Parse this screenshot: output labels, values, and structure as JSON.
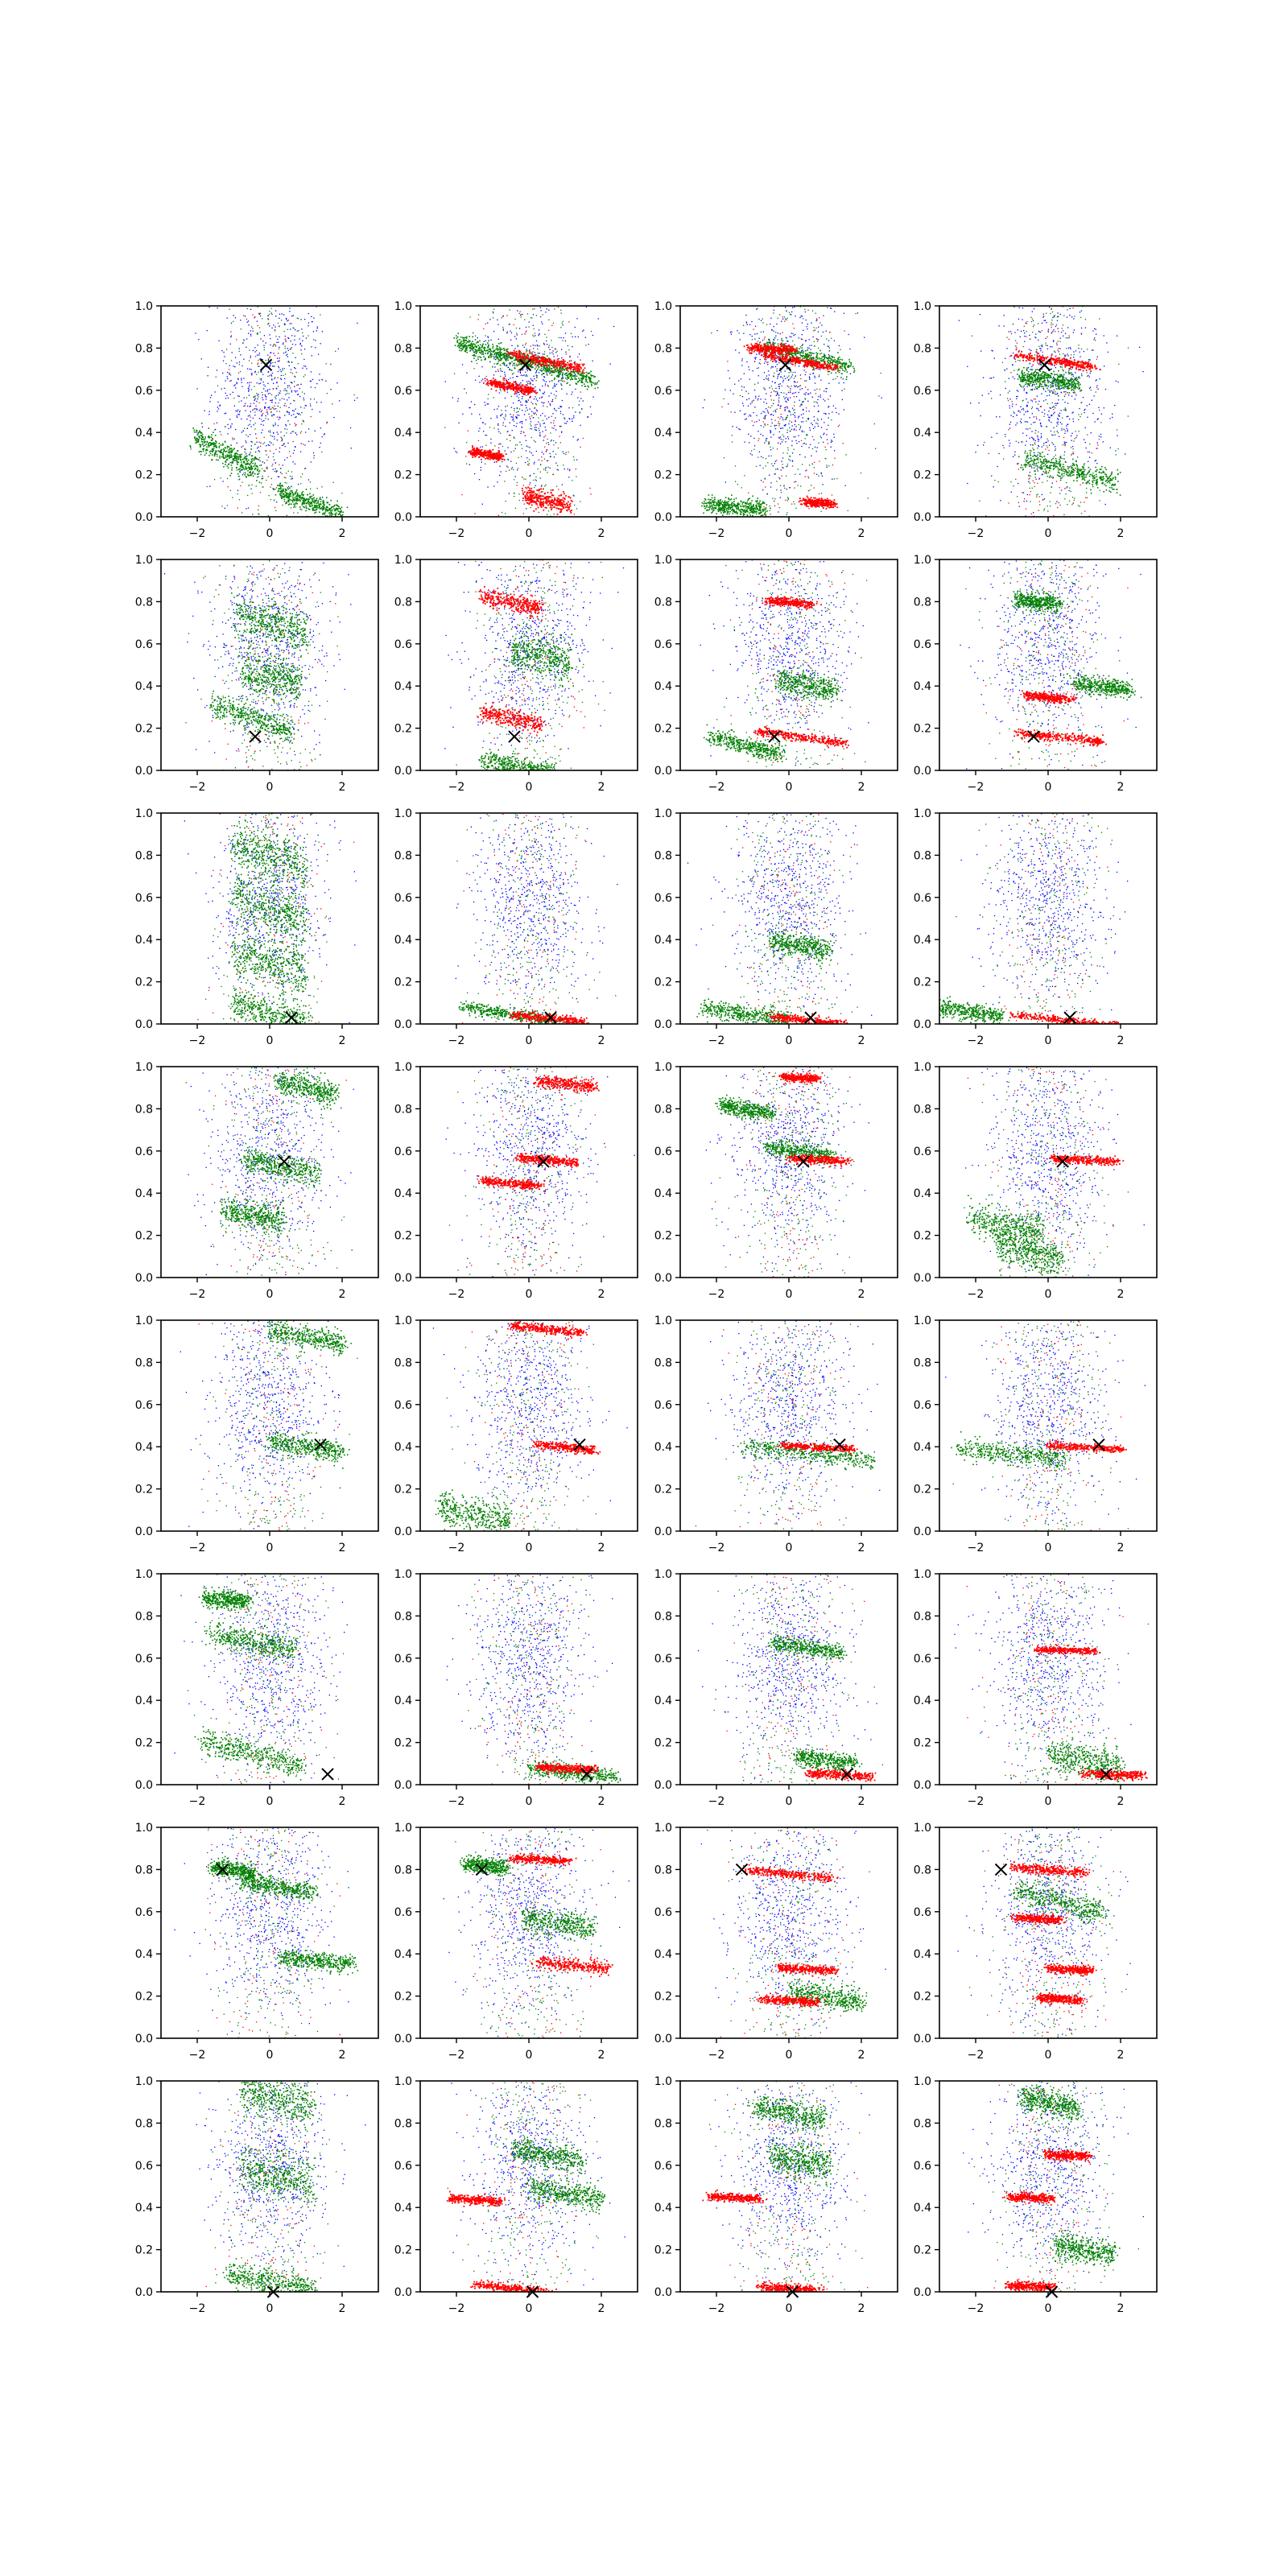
{
  "figure": {
    "title": "",
    "background": "#ffffff"
  },
  "colors": {
    "blue": "#0000ff",
    "green": "#008000",
    "red": "#ff0000",
    "marker": "#000000"
  },
  "axes_common": {
    "x_ticks": [
      -2,
      0,
      2
    ],
    "y_ticks": [
      0.0,
      0.2,
      0.4,
      0.6,
      0.8,
      1.0
    ],
    "x_tick_labels": [
      "−2",
      "0",
      "2"
    ],
    "y_tick_labels": [
      "0.0",
      "0.2",
      "0.4",
      "0.6",
      "0.8",
      "1.0"
    ],
    "xlim": [
      -3,
      3
    ],
    "ylim": [
      0,
      1
    ],
    "grid": false
  },
  "chart_data": {
    "type": "scatter",
    "layout": "8 rows x 4 columns grid of scatter subplots",
    "series": [
      {
        "name": "blue",
        "color": "#0000ff",
        "description": "broad cloud centered near x=0, y≈0.6"
      },
      {
        "name": "green",
        "color": "#008000",
        "description": "tilted bands"
      },
      {
        "name": "red",
        "color": "#ff0000",
        "description": "thin tilted bands"
      },
      {
        "name": "marker",
        "color": "#000000",
        "description": "single x marker"
      }
    ],
    "rows": [
      {
        "marker": [
          -0.1,
          0.72
        ],
        "bands": [
          [
            [
              -1.2,
              0.3,
              0.9,
              0.55,
              0.03,
              "g"
            ],
            [
              1.1,
              0.07,
              0.9,
              0.35,
              0.02,
              "g"
            ]
          ],
          [
            [
              -1.0,
              0.78,
              1.0,
              0.3,
              0.02,
              "g"
            ],
            [
              0.8,
              0.7,
              1.0,
              0.35,
              0.02,
              "g"
            ],
            [
              0.5,
              0.74,
              1.0,
              0.2,
              0.012,
              "r"
            ],
            [
              -0.5,
              0.62,
              0.6,
              0.2,
              0.01,
              "r"
            ],
            [
              -1.2,
              0.3,
              0.4,
              0.2,
              0.01,
              "r"
            ],
            [
              0.5,
              0.08,
              0.6,
              0.25,
              0.02,
              "r"
            ]
          ],
          [
            [
              0.5,
              0.76,
              1.2,
              0.25,
              0.02,
              "g"
            ],
            [
              0.3,
              0.74,
              1.0,
              0.2,
              0.01,
              "r"
            ],
            [
              -0.5,
              0.8,
              0.6,
              0.05,
              0.01,
              "r"
            ],
            [
              -1.5,
              0.05,
              0.8,
              0.1,
              0.02,
              "g"
            ],
            [
              0.8,
              0.07,
              0.4,
              0.1,
              0.01,
              "r"
            ]
          ],
          [
            [
              0.6,
              0.22,
              1.3,
              0.25,
              0.025,
              "g"
            ],
            [
              0.2,
              0.74,
              1.1,
              0.15,
              0.01,
              "r"
            ],
            [
              0.0,
              0.65,
              0.8,
              0.15,
              0.02,
              "g"
            ]
          ]
        ]
      },
      {
        "marker": [
          -0.4,
          0.16
        ],
        "bands": [
          [
            [
              -0.5,
              0.25,
              1.1,
              0.35,
              0.03,
              "g"
            ],
            [
              0.0,
              0.7,
              1.0,
              0.25,
              0.05,
              "g"
            ],
            [
              0.0,
              0.45,
              0.8,
              0.2,
              0.05,
              "g"
            ]
          ],
          [
            [
              -0.5,
              0.8,
              0.8,
              0.2,
              0.02,
              "r"
            ],
            [
              -0.5,
              0.25,
              0.8,
              0.2,
              0.02,
              "r"
            ],
            [
              -0.3,
              0.02,
              1.0,
              0.2,
              0.02,
              "g"
            ],
            [
              0.3,
              0.55,
              0.8,
              0.2,
              0.05,
              "g"
            ]
          ],
          [
            [
              -1.2,
              0.12,
              1.0,
              0.25,
              0.02,
              "g"
            ],
            [
              0.3,
              0.16,
              1.2,
              0.15,
              0.01,
              "r"
            ],
            [
              0.5,
              0.4,
              0.8,
              0.2,
              0.03,
              "g"
            ],
            [
              0.0,
              0.8,
              0.6,
              0.1,
              0.01,
              "r"
            ]
          ],
          [
            [
              0.3,
              0.16,
              1.2,
              0.1,
              0.01,
              "r"
            ],
            [
              1.5,
              0.4,
              0.8,
              0.15,
              0.02,
              "g"
            ],
            [
              0.0,
              0.35,
              0.6,
              0.1,
              0.01,
              "r"
            ],
            [
              -0.3,
              0.8,
              0.6,
              0.1,
              0.02,
              "g"
            ]
          ]
        ]
      },
      {
        "marker": [
          0.6,
          0.03
        ],
        "bands": [
          [
            [
              0.0,
              0.55,
              1.0,
              0.3,
              0.06,
              "g"
            ],
            [
              0.0,
              0.3,
              1.0,
              0.3,
              0.06,
              "g"
            ],
            [
              0.0,
              0.05,
              1.0,
              0.3,
              0.04,
              "g"
            ],
            [
              0.0,
              0.8,
              1.0,
              0.3,
              0.06,
              "g"
            ]
          ],
          [
            [
              -0.5,
              0.05,
              1.4,
              0.15,
              0.015,
              "g"
            ],
            [
              0.5,
              0.03,
              1.0,
              0.1,
              0.01,
              "r"
            ]
          ],
          [
            [
              -1.2,
              0.05,
              1.2,
              0.15,
              0.02,
              "g"
            ],
            [
              0.5,
              0.02,
              1.0,
              0.1,
              0.01,
              "r"
            ],
            [
              0.3,
              0.37,
              0.8,
              0.15,
              0.03,
              "g"
            ]
          ],
          [
            [
              -2.2,
              0.06,
              0.9,
              0.15,
              0.02,
              "g"
            ],
            [
              0.5,
              0.02,
              1.5,
              0.1,
              0.008,
              "r"
            ]
          ]
        ]
      },
      {
        "marker": [
          0.4,
          0.55
        ],
        "bands": [
          [
            [
              1.0,
              0.9,
              0.8,
              0.25,
              0.03,
              "g"
            ],
            [
              0.3,
              0.53,
              1.0,
              0.2,
              0.03,
              "g"
            ],
            [
              -0.5,
              0.3,
              0.8,
              0.2,
              0.03,
              "g"
            ]
          ],
          [
            [
              1.0,
              0.92,
              0.8,
              0.1,
              0.015,
              "r"
            ],
            [
              0.5,
              0.56,
              0.8,
              0.1,
              0.01,
              "r"
            ],
            [
              -0.5,
              0.45,
              0.8,
              0.1,
              0.01,
              "r"
            ]
          ],
          [
            [
              -1.2,
              0.8,
              0.7,
              0.15,
              0.02,
              "g"
            ],
            [
              0.3,
              0.6,
              0.9,
              0.15,
              0.02,
              "g"
            ],
            [
              0.8,
              0.56,
              0.8,
              0.05,
              0.01,
              "r"
            ],
            [
              0.3,
              0.95,
              0.5,
              0.05,
              0.01,
              "r"
            ]
          ],
          [
            [
              1.0,
              0.56,
              0.9,
              0.05,
              0.01,
              "r"
            ],
            [
              -1.2,
              0.25,
              1.0,
              0.2,
              0.04,
              "g"
            ],
            [
              -0.5,
              0.12,
              0.9,
              0.2,
              0.04,
              "g"
            ]
          ]
        ]
      },
      {
        "marker": [
          1.4,
          0.41
        ],
        "bands": [
          [
            [
              1.0,
              0.4,
              1.0,
              0.15,
              0.025,
              "g"
            ],
            [
              1.0,
              0.92,
              1.0,
              0.15,
              0.025,
              "g"
            ]
          ],
          [
            [
              1.0,
              0.4,
              0.8,
              0.1,
              0.01,
              "r"
            ],
            [
              0.5,
              0.96,
              1.0,
              0.1,
              0.01,
              "r"
            ],
            [
              -1.5,
              0.08,
              1.0,
              0.2,
              0.04,
              "g"
            ]
          ],
          [
            [
              0.5,
              0.37,
              1.8,
              0.12,
              0.02,
              "g"
            ],
            [
              0.8,
              0.4,
              1.0,
              0.05,
              0.008,
              "r"
            ]
          ],
          [
            [
              -1.0,
              0.37,
              1.5,
              0.1,
              0.025,
              "g"
            ],
            [
              1.0,
              0.4,
              1.0,
              0.05,
              0.008,
              "r"
            ]
          ]
        ]
      },
      {
        "marker": [
          1.6,
          0.05
        ],
        "bands": [
          [
            [
              -0.5,
              0.15,
              1.4,
              0.25,
              0.03,
              "g"
            ],
            [
              -0.5,
              0.68,
              1.2,
              0.2,
              0.03,
              "g"
            ],
            [
              -1.2,
              0.88,
              0.6,
              0.1,
              0.02,
              "g"
            ]
          ],
          [
            [
              1.2,
              0.06,
              1.2,
              0.1,
              0.02,
              "g"
            ],
            [
              1.0,
              0.08,
              0.8,
              0.05,
              0.01,
              "r"
            ]
          ],
          [
            [
              0.5,
              0.65,
              1.0,
              0.15,
              0.02,
              "g"
            ],
            [
              1.4,
              0.05,
              0.9,
              0.05,
              0.01,
              "r"
            ],
            [
              1.0,
              0.12,
              0.8,
              0.1,
              0.02,
              "g"
            ]
          ],
          [
            [
              1.8,
              0.05,
              0.8,
              0.03,
              0.01,
              "r"
            ],
            [
              0.5,
              0.64,
              0.8,
              0.03,
              0.008,
              "r"
            ],
            [
              1.0,
              0.12,
              1.0,
              0.2,
              0.04,
              "g"
            ]
          ]
        ]
      },
      {
        "marker": [
          -1.3,
          0.8
        ],
        "bands": [
          [
            [
              1.3,
              0.37,
              1.0,
              0.1,
              0.02,
              "g"
            ],
            [
              0.2,
              0.72,
              1.0,
              0.15,
              0.02,
              "g"
            ],
            [
              -1.0,
              0.8,
              0.6,
              0.15,
              0.02,
              "g"
            ]
          ],
          [
            [
              1.2,
              0.35,
              1.0,
              0.1,
              0.015,
              "r"
            ],
            [
              0.8,
              0.55,
              1.0,
              0.15,
              0.03,
              "g"
            ],
            [
              -1.2,
              0.82,
              0.6,
              0.1,
              0.02,
              "g"
            ],
            [
              0.3,
              0.85,
              0.8,
              0.05,
              0.01,
              "r"
            ]
          ],
          [
            [
              0.0,
              0.78,
              1.2,
              0.1,
              0.01,
              "r"
            ],
            [
              1.0,
              0.2,
              1.0,
              0.15,
              0.03,
              "g"
            ],
            [
              0.5,
              0.33,
              0.8,
              0.05,
              0.01,
              "r"
            ],
            [
              0.0,
              0.18,
              0.8,
              0.05,
              0.01,
              "r"
            ]
          ],
          [
            [
              0.0,
              0.8,
              1.0,
              0.08,
              0.01,
              "r"
            ],
            [
              0.3,
              0.65,
              1.2,
              0.25,
              0.03,
              "g"
            ],
            [
              0.6,
              0.33,
              0.6,
              0.05,
              0.01,
              "r"
            ],
            [
              0.3,
              0.19,
              0.6,
              0.05,
              0.01,
              "r"
            ],
            [
              -0.3,
              0.57,
              0.6,
              0.05,
              0.01,
              "r"
            ]
          ]
        ]
      },
      {
        "marker": [
          0.1,
          0.0
        ],
        "bands": [
          [
            [
              0.0,
              0.05,
              1.2,
              0.2,
              0.03,
              "g"
            ],
            [
              0.2,
              0.55,
              1.0,
              0.2,
              0.05,
              "g"
            ],
            [
              0.2,
              0.92,
              1.0,
              0.2,
              0.05,
              "g"
            ]
          ],
          [
            [
              -1.5,
              0.44,
              0.7,
              0.05,
              0.01,
              "r"
            ],
            [
              1.0,
              0.47,
              1.0,
              0.15,
              0.03,
              "g"
            ],
            [
              0.5,
              0.65,
              1.0,
              0.15,
              0.03,
              "g"
            ],
            [
              -0.5,
              0.02,
              1.0,
              0.1,
              0.01,
              "r"
            ]
          ],
          [
            [
              -1.5,
              0.45,
              0.7,
              0.05,
              0.01,
              "r"
            ],
            [
              0.0,
              0.85,
              1.0,
              0.2,
              0.03,
              "g"
            ],
            [
              0.0,
              0.02,
              0.8,
              0.05,
              0.01,
              "r"
            ],
            [
              0.3,
              0.62,
              0.8,
              0.15,
              0.04,
              "g"
            ]
          ],
          [
            [
              -0.5,
              0.45,
              0.6,
              0.05,
              0.01,
              "r"
            ],
            [
              -0.5,
              0.03,
              0.6,
              0.05,
              0.01,
              "r"
            ],
            [
              1.0,
              0.2,
              0.8,
              0.15,
              0.03,
              "g"
            ],
            [
              0.5,
              0.65,
              0.6,
              0.05,
              0.01,
              "r"
            ],
            [
              0.0,
              0.9,
              0.8,
              0.2,
              0.03,
              "g"
            ]
          ]
        ]
      }
    ]
  }
}
